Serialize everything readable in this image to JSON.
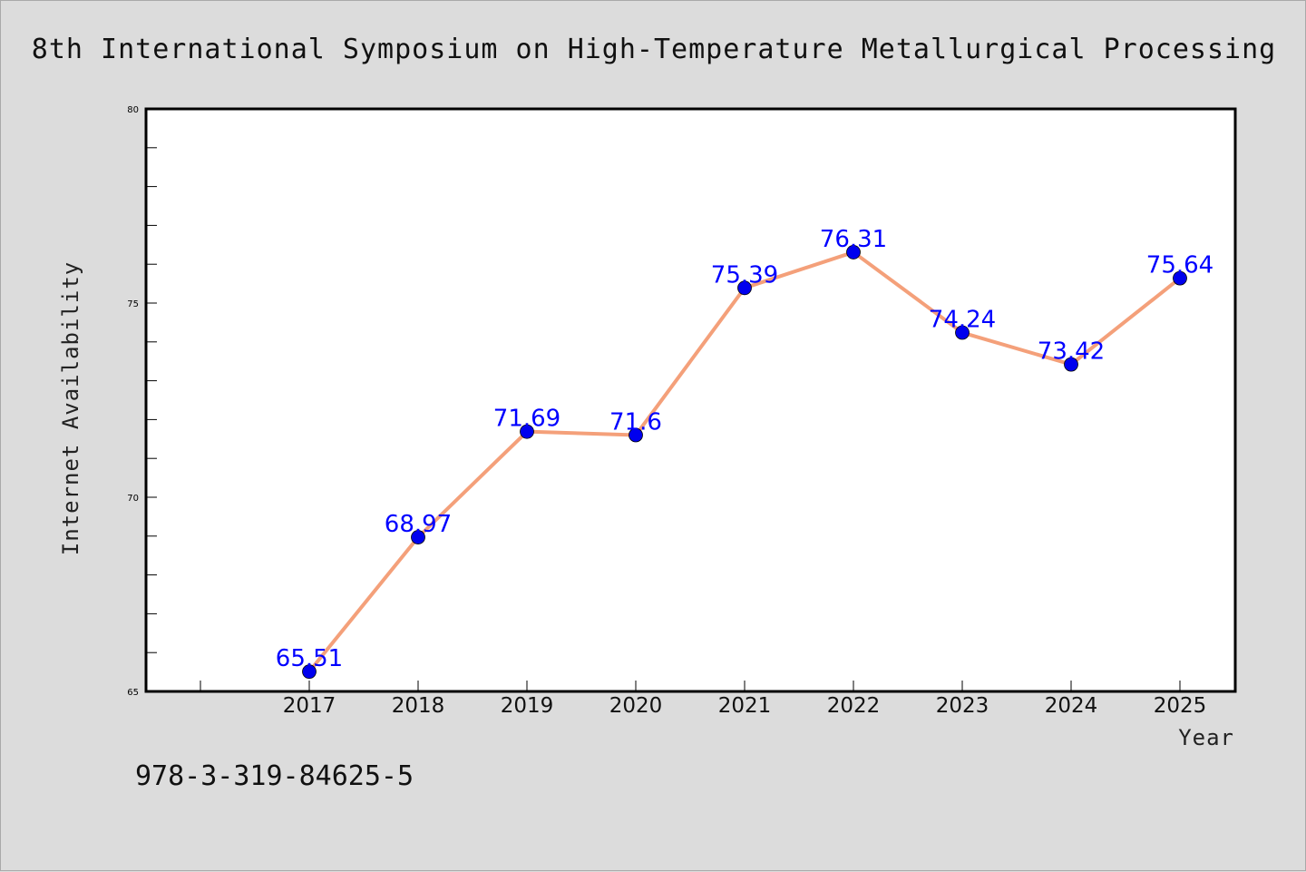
{
  "chart_data": {
    "type": "line",
    "title": "8th International Symposium on High-Temperature Metallurgical Processing",
    "xlabel": "Year",
    "ylabel": "Internet Availability",
    "categories": [
      "2017",
      "2018",
      "2019",
      "2020",
      "2021",
      "2022",
      "2023",
      "2024",
      "2025"
    ],
    "series": [
      {
        "values": [
          65.51,
          68.97,
          71.69,
          71.6,
          75.39,
          76.31,
          74.24,
          73.42,
          75.64
        ],
        "data_labels": [
          "65.51",
          "68.97",
          "71.69",
          "71.6",
          "75.39",
          "76.31",
          "74.24",
          "73.42",
          "75.64"
        ],
        "line_color": "#f4a07a",
        "marker_color": "#0000ee"
      }
    ],
    "ylim": [
      65,
      80
    ],
    "yticks": [
      "65",
      "70",
      "75",
      "80"
    ],
    "grid": false,
    "legend": "none",
    "label_color": "#0000ff"
  },
  "footnote": "978-3-319-84625-5"
}
